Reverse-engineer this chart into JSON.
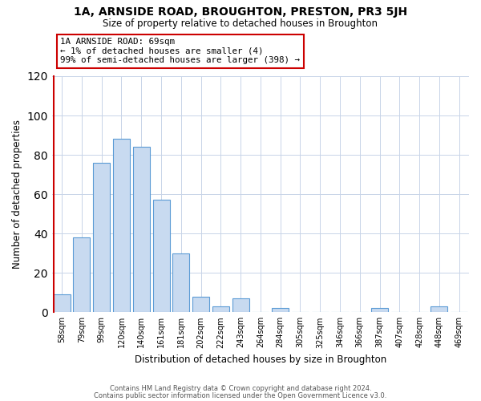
{
  "title": "1A, ARNSIDE ROAD, BROUGHTON, PRESTON, PR3 5JH",
  "subtitle": "Size of property relative to detached houses in Broughton",
  "xlabel": "Distribution of detached houses by size in Broughton",
  "ylabel": "Number of detached properties",
  "categories": [
    "58sqm",
    "79sqm",
    "99sqm",
    "120sqm",
    "140sqm",
    "161sqm",
    "181sqm",
    "202sqm",
    "222sqm",
    "243sqm",
    "264sqm",
    "284sqm",
    "305sqm",
    "325sqm",
    "346sqm",
    "366sqm",
    "387sqm",
    "407sqm",
    "428sqm",
    "448sqm",
    "469sqm"
  ],
  "values": [
    9,
    38,
    76,
    88,
    84,
    57,
    30,
    8,
    3,
    7,
    0,
    2,
    0,
    0,
    0,
    0,
    2,
    0,
    0,
    3,
    0
  ],
  "bar_color": "#c8daf0",
  "bar_edge_color": "#5b9bd5",
  "highlight_line_color": "#cc0000",
  "annotation_text": "1A ARNSIDE ROAD: 69sqm\n← 1% of detached houses are smaller (4)\n99% of semi-detached houses are larger (398) →",
  "annotation_box_color": "#ffffff",
  "annotation_box_edge_color": "#cc0000",
  "ylim": [
    0,
    120
  ],
  "yticks": [
    0,
    20,
    40,
    60,
    80,
    100,
    120
  ],
  "footer_line1": "Contains HM Land Registry data © Crown copyright and database right 2024.",
  "footer_line2": "Contains public sector information licensed under the Open Government Licence v3.0.",
  "bg_color": "#ffffff",
  "grid_color": "#c8d4e8"
}
